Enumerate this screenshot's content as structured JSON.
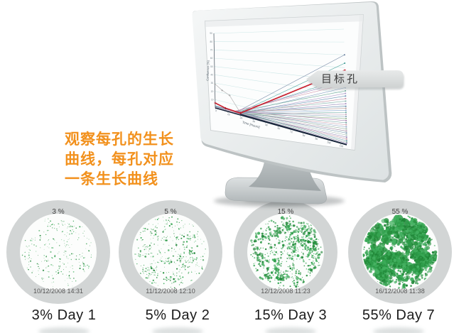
{
  "annotation": {
    "lines": [
      "观察每孔的生长",
      "曲线，每孔对应",
      "一条生长曲线"
    ],
    "color": "#F2911D"
  },
  "callout": {
    "label": "目标孔"
  },
  "wells": [
    {
      "confluence_pct": "3 %",
      "confluence_value": 3,
      "timestamp": "10/12/2008 14:31",
      "label": "3% Day 1"
    },
    {
      "confluence_pct": "5 %",
      "confluence_value": 5,
      "timestamp": "11/12/2008 12:10",
      "label": "5% Day 2"
    },
    {
      "confluence_pct": "15 %",
      "confluence_value": 15,
      "timestamp": "12/12/2008 11:23",
      "label": "15% Day 3"
    },
    {
      "confluence_pct": "55 %",
      "confluence_value": 55,
      "timestamp": "16/12/2008 11:38",
      "label": "55% Day 7"
    }
  ],
  "colors": {
    "annotation_orange": "#F2911D",
    "cell_green": "#2f9e4b",
    "target_line_red": "#c8202f",
    "callout_bg": "#d8dada",
    "monitor_bezel": "#e9ecec"
  },
  "chart_data": {
    "type": "line",
    "title": "",
    "xlabel": "Time [Hours]",
    "ylabel": "Confluence (%)",
    "xlim": [
      0,
      126
    ],
    "ylim": [
      0,
      90
    ],
    "x_ticks": [
      0,
      12,
      24,
      36,
      48,
      60,
      72,
      84,
      96,
      108,
      120
    ],
    "y_ticks": [
      10,
      20,
      30,
      40,
      50,
      60,
      70,
      80,
      90
    ],
    "grid": true,
    "legend": "none",
    "highlight_series": {
      "name": "目标孔 (target well)",
      "color": "#c8202f",
      "points": [
        [
          0,
          6
        ],
        [
          10,
          3
        ],
        [
          24,
          2
        ],
        [
          126,
          58
        ]
      ]
    },
    "reference_series": {
      "color": "#b3b3b3",
      "points": [
        [
          0,
          29
        ],
        [
          7,
          23
        ],
        [
          14,
          19
        ],
        [
          24,
          2.5
        ]
      ]
    },
    "baseline_series": {
      "color": "#1c2b3d",
      "points": [
        [
          24,
          1
        ],
        [
          126,
          0.3
        ]
      ]
    },
    "well_series_start_x": 24,
    "well_series_end_x": 126,
    "well_series": [
      {
        "color": "#6d82a0",
        "end": 70
      },
      {
        "color": "#3f9d96",
        "end": 63.5
      },
      {
        "color": "#5aa7a7",
        "end": 52
      },
      {
        "color": "#9b7fba",
        "end": 49.5
      },
      {
        "color": "#d490a8",
        "end": 47
      },
      {
        "color": "#7f9cc0",
        "end": 44.5
      },
      {
        "color": "#74ad9b",
        "end": 42
      },
      {
        "color": "#b39aca",
        "end": 40
      },
      {
        "color": "#6a93b5",
        "end": 38
      },
      {
        "color": "#c78fa3",
        "end": 36
      },
      {
        "color": "#86b3ab",
        "end": 34
      },
      {
        "color": "#a98fc0",
        "end": 32
      },
      {
        "color": "#5f86a8",
        "end": 30
      },
      {
        "color": "#b89a94",
        "end": 28.4
      },
      {
        "color": "#8aa8cf",
        "end": 26.8
      },
      {
        "color": "#68a8a0",
        "end": 25.2
      },
      {
        "color": "#c0a0b8",
        "end": 23.6
      },
      {
        "color": "#7b9bb0",
        "end": 22
      },
      {
        "color": "#96b58f",
        "end": 20.4
      },
      {
        "color": "#a884b0",
        "end": 18.8
      },
      {
        "color": "#6f9f9f",
        "end": 17.2
      },
      {
        "color": "#c898a8",
        "end": 15.6
      },
      {
        "color": "#88a0c0",
        "end": 14
      },
      {
        "color": "#9bb0a0",
        "end": 12.4
      },
      {
        "color": "#b090a8",
        "end": 10.8
      },
      {
        "color": "#7090a8",
        "end": 9.2
      },
      {
        "color": "#a0b8b0",
        "end": 7.6
      },
      {
        "color": "#907fb0",
        "end": 6
      },
      {
        "color": "#c0889a",
        "end": 4.6
      },
      {
        "color": "#6898a8",
        "end": 3.2
      },
      {
        "color": "#88b0a0",
        "end": 2
      },
      {
        "color": "#a890c0",
        "end": 1.2
      }
    ]
  }
}
